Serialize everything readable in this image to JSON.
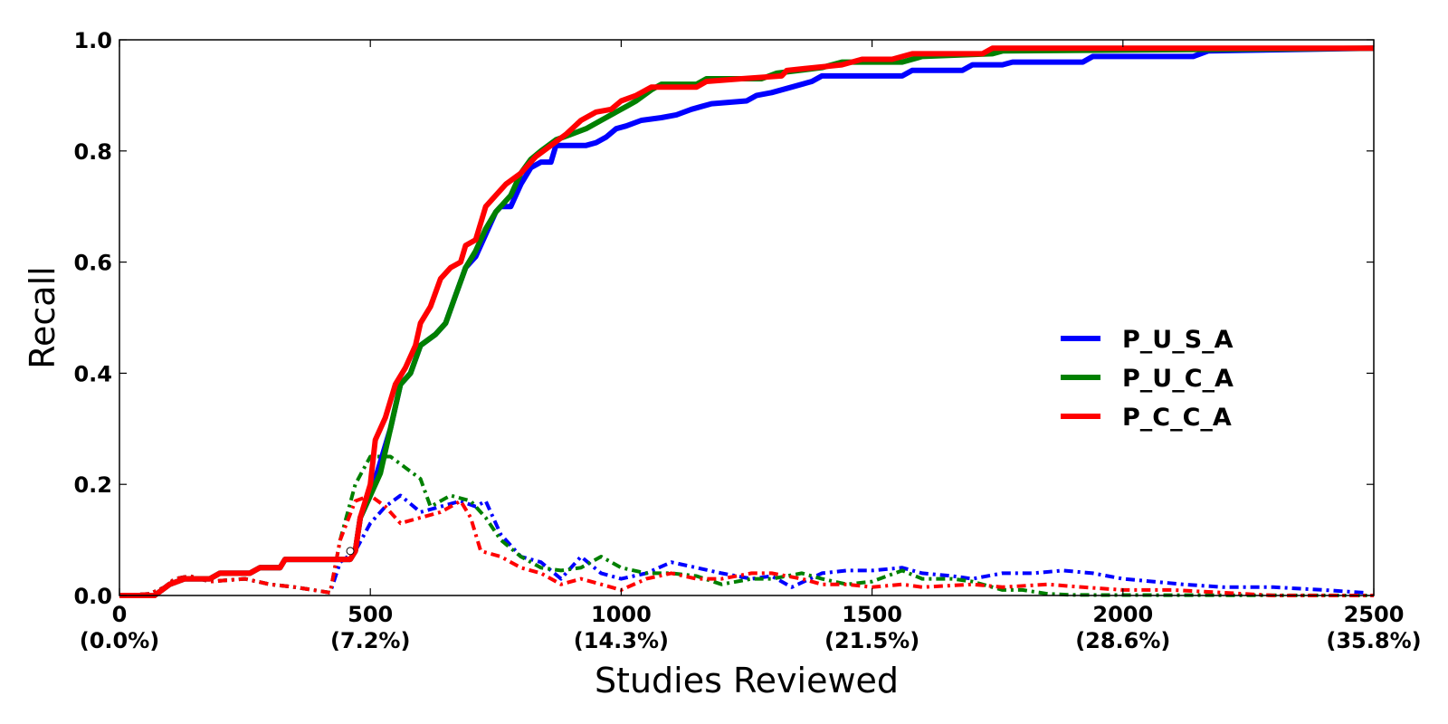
{
  "chart_data": {
    "type": "line",
    "title": "",
    "xlabel": "Studies Reviewed",
    "ylabel": "Recall",
    "xlim": [
      0,
      2500
    ],
    "ylim": [
      0,
      1.0
    ],
    "x_ticks": [
      {
        "value": 0,
        "label": "0",
        "sublabel": "(0.0%)"
      },
      {
        "value": 500,
        "label": "500",
        "sublabel": "(7.2%)"
      },
      {
        "value": 1000,
        "label": "1000",
        "sublabel": "(14.3%)"
      },
      {
        "value": 1500,
        "label": "1500",
        "sublabel": "(21.5%)"
      },
      {
        "value": 2000,
        "label": "2000",
        "sublabel": "(28.6%)"
      },
      {
        "value": 2500,
        "label": "2500",
        "sublabel": "(35.8%)"
      }
    ],
    "y_ticks": [
      {
        "value": 0.0,
        "label": "0.0"
      },
      {
        "value": 0.2,
        "label": "0.2"
      },
      {
        "value": 0.4,
        "label": "0.4"
      },
      {
        "value": 0.6,
        "label": "0.6"
      },
      {
        "value": 0.8,
        "label": "0.8"
      },
      {
        "value": 1.0,
        "label": "1.0"
      }
    ],
    "legend_position": "center-right",
    "series": [
      {
        "name": "P_U_S_A",
        "color": "#0000ff",
        "recall": [
          [
            0,
            0
          ],
          [
            70,
            0
          ],
          [
            100,
            0.02
          ],
          [
            130,
            0.03
          ],
          [
            180,
            0.03
          ],
          [
            200,
            0.04
          ],
          [
            260,
            0.04
          ],
          [
            280,
            0.05
          ],
          [
            320,
            0.05
          ],
          [
            330,
            0.065
          ],
          [
            460,
            0.065
          ],
          [
            470,
            0.08
          ],
          [
            480,
            0.14
          ],
          [
            500,
            0.18
          ],
          [
            520,
            0.24
          ],
          [
            540,
            0.3
          ],
          [
            560,
            0.38
          ],
          [
            580,
            0.4
          ],
          [
            600,
            0.45
          ],
          [
            630,
            0.47
          ],
          [
            650,
            0.49
          ],
          [
            670,
            0.54
          ],
          [
            690,
            0.59
          ],
          [
            710,
            0.61
          ],
          [
            730,
            0.65
          ],
          [
            750,
            0.69
          ],
          [
            760,
            0.7
          ],
          [
            780,
            0.7
          ],
          [
            800,
            0.74
          ],
          [
            820,
            0.77
          ],
          [
            840,
            0.78
          ],
          [
            860,
            0.78
          ],
          [
            870,
            0.81
          ],
          [
            930,
            0.81
          ],
          [
            950,
            0.815
          ],
          [
            970,
            0.825
          ],
          [
            990,
            0.84
          ],
          [
            1010,
            0.845
          ],
          [
            1040,
            0.855
          ],
          [
            1080,
            0.86
          ],
          [
            1110,
            0.865
          ],
          [
            1140,
            0.875
          ],
          [
            1160,
            0.88
          ],
          [
            1180,
            0.885
          ],
          [
            1250,
            0.89
          ],
          [
            1270,
            0.9
          ],
          [
            1300,
            0.905
          ],
          [
            1340,
            0.915
          ],
          [
            1380,
            0.925
          ],
          [
            1400,
            0.935
          ],
          [
            1560,
            0.935
          ],
          [
            1580,
            0.945
          ],
          [
            1680,
            0.945
          ],
          [
            1700,
            0.955
          ],
          [
            1760,
            0.955
          ],
          [
            1780,
            0.96
          ],
          [
            1920,
            0.96
          ],
          [
            1940,
            0.97
          ],
          [
            2140,
            0.97
          ],
          [
            2170,
            0.98
          ],
          [
            2500,
            0.985
          ]
        ],
        "validation": [
          [
            0,
            0
          ],
          [
            60,
            0.003
          ],
          [
            90,
            0.015
          ],
          [
            110,
            0.03
          ],
          [
            140,
            0.035
          ],
          [
            180,
            0.025
          ],
          [
            250,
            0.03
          ],
          [
            300,
            0.02
          ],
          [
            350,
            0.015
          ],
          [
            420,
            0.005
          ],
          [
            440,
            0.06
          ],
          [
            470,
            0.08
          ],
          [
            500,
            0.13
          ],
          [
            530,
            0.16
          ],
          [
            560,
            0.18
          ],
          [
            600,
            0.15
          ],
          [
            640,
            0.16
          ],
          [
            680,
            0.17
          ],
          [
            710,
            0.16
          ],
          [
            730,
            0.17
          ],
          [
            760,
            0.11
          ],
          [
            800,
            0.07
          ],
          [
            840,
            0.06
          ],
          [
            880,
            0.03
          ],
          [
            920,
            0.07
          ],
          [
            960,
            0.04
          ],
          [
            1000,
            0.03
          ],
          [
            1050,
            0.04
          ],
          [
            1100,
            0.06
          ],
          [
            1150,
            0.05
          ],
          [
            1200,
            0.04
          ],
          [
            1260,
            0.03
          ],
          [
            1300,
            0.035
          ],
          [
            1340,
            0.015
          ],
          [
            1400,
            0.04
          ],
          [
            1450,
            0.045
          ],
          [
            1500,
            0.045
          ],
          [
            1560,
            0.05
          ],
          [
            1600,
            0.04
          ],
          [
            1660,
            0.035
          ],
          [
            1700,
            0.03
          ],
          [
            1760,
            0.04
          ],
          [
            1820,
            0.04
          ],
          [
            1880,
            0.045
          ],
          [
            1940,
            0.04
          ],
          [
            2000,
            0.03
          ],
          [
            2060,
            0.025
          ],
          [
            2120,
            0.02
          ],
          [
            2200,
            0.015
          ],
          [
            2300,
            0.015
          ],
          [
            2400,
            0.01
          ],
          [
            2480,
            0.005
          ]
        ]
      },
      {
        "name": "P_U_C_A",
        "color": "#008000",
        "recall": [
          [
            0,
            0
          ],
          [
            70,
            0
          ],
          [
            100,
            0.02
          ],
          [
            130,
            0.03
          ],
          [
            180,
            0.03
          ],
          [
            200,
            0.04
          ],
          [
            260,
            0.04
          ],
          [
            280,
            0.05
          ],
          [
            320,
            0.05
          ],
          [
            330,
            0.065
          ],
          [
            460,
            0.065
          ],
          [
            470,
            0.08
          ],
          [
            480,
            0.14
          ],
          [
            500,
            0.18
          ],
          [
            520,
            0.22
          ],
          [
            540,
            0.3
          ],
          [
            560,
            0.38
          ],
          [
            580,
            0.4
          ],
          [
            600,
            0.45
          ],
          [
            630,
            0.47
          ],
          [
            650,
            0.49
          ],
          [
            670,
            0.54
          ],
          [
            690,
            0.59
          ],
          [
            710,
            0.62
          ],
          [
            730,
            0.66
          ],
          [
            750,
            0.69
          ],
          [
            780,
            0.72
          ],
          [
            800,
            0.76
          ],
          [
            820,
            0.785
          ],
          [
            840,
            0.8
          ],
          [
            870,
            0.82
          ],
          [
            900,
            0.83
          ],
          [
            930,
            0.84
          ],
          [
            960,
            0.855
          ],
          [
            990,
            0.87
          ],
          [
            1010,
            0.88
          ],
          [
            1030,
            0.89
          ],
          [
            1060,
            0.91
          ],
          [
            1080,
            0.92
          ],
          [
            1150,
            0.92
          ],
          [
            1170,
            0.93
          ],
          [
            1280,
            0.93
          ],
          [
            1310,
            0.94
          ],
          [
            1400,
            0.95
          ],
          [
            1440,
            0.96
          ],
          [
            1560,
            0.96
          ],
          [
            1600,
            0.97
          ],
          [
            1740,
            0.975
          ],
          [
            1760,
            0.98
          ],
          [
            2500,
            0.985
          ]
        ],
        "validation": [
          [
            0,
            0
          ],
          [
            60,
            0.003
          ],
          [
            90,
            0.015
          ],
          [
            110,
            0.03
          ],
          [
            140,
            0.035
          ],
          [
            180,
            0.025
          ],
          [
            250,
            0.03
          ],
          [
            300,
            0.02
          ],
          [
            350,
            0.015
          ],
          [
            420,
            0.005
          ],
          [
            440,
            0.1
          ],
          [
            470,
            0.2
          ],
          [
            500,
            0.25
          ],
          [
            540,
            0.25
          ],
          [
            570,
            0.23
          ],
          [
            600,
            0.21
          ],
          [
            620,
            0.16
          ],
          [
            660,
            0.18
          ],
          [
            700,
            0.17
          ],
          [
            730,
            0.14
          ],
          [
            760,
            0.1
          ],
          [
            800,
            0.07
          ],
          [
            840,
            0.05
          ],
          [
            880,
            0.045
          ],
          [
            920,
            0.05
          ],
          [
            960,
            0.07
          ],
          [
            1000,
            0.05
          ],
          [
            1050,
            0.04
          ],
          [
            1100,
            0.04
          ],
          [
            1150,
            0.035
          ],
          [
            1200,
            0.02
          ],
          [
            1260,
            0.03
          ],
          [
            1300,
            0.03
          ],
          [
            1360,
            0.04
          ],
          [
            1400,
            0.03
          ],
          [
            1450,
            0.02
          ],
          [
            1500,
            0.025
          ],
          [
            1560,
            0.045
          ],
          [
            1600,
            0.03
          ],
          [
            1660,
            0.03
          ],
          [
            1700,
            0.025
          ],
          [
            1760,
            0.01
          ],
          [
            1800,
            0.01
          ],
          [
            1850,
            0.003
          ],
          [
            1900,
            0.001
          ],
          [
            2500,
            0.0
          ]
        ]
      },
      {
        "name": "P_C_C_A",
        "color": "#ff0000",
        "recall": [
          [
            0,
            0
          ],
          [
            70,
            0
          ],
          [
            100,
            0.02
          ],
          [
            130,
            0.03
          ],
          [
            180,
            0.03
          ],
          [
            200,
            0.04
          ],
          [
            260,
            0.04
          ],
          [
            280,
            0.05
          ],
          [
            320,
            0.05
          ],
          [
            330,
            0.065
          ],
          [
            460,
            0.065
          ],
          [
            470,
            0.08
          ],
          [
            480,
            0.14
          ],
          [
            500,
            0.2
          ],
          [
            510,
            0.28
          ],
          [
            530,
            0.32
          ],
          [
            550,
            0.38
          ],
          [
            570,
            0.41
          ],
          [
            590,
            0.45
          ],
          [
            600,
            0.49
          ],
          [
            620,
            0.52
          ],
          [
            640,
            0.57
          ],
          [
            660,
            0.59
          ],
          [
            680,
            0.6
          ],
          [
            690,
            0.63
          ],
          [
            710,
            0.64
          ],
          [
            730,
            0.7
          ],
          [
            750,
            0.72
          ],
          [
            770,
            0.74
          ],
          [
            800,
            0.76
          ],
          [
            830,
            0.79
          ],
          [
            860,
            0.81
          ],
          [
            890,
            0.83
          ],
          [
            920,
            0.855
          ],
          [
            950,
            0.87
          ],
          [
            980,
            0.875
          ],
          [
            1000,
            0.89
          ],
          [
            1030,
            0.9
          ],
          [
            1060,
            0.915
          ],
          [
            1150,
            0.915
          ],
          [
            1170,
            0.925
          ],
          [
            1240,
            0.93
          ],
          [
            1320,
            0.935
          ],
          [
            1330,
            0.945
          ],
          [
            1440,
            0.955
          ],
          [
            1480,
            0.965
          ],
          [
            1540,
            0.965
          ],
          [
            1580,
            0.975
          ],
          [
            1720,
            0.975
          ],
          [
            1740,
            0.985
          ],
          [
            2500,
            0.985
          ]
        ],
        "validation": [
          [
            0,
            0
          ],
          [
            60,
            0.003
          ],
          [
            90,
            0.015
          ],
          [
            110,
            0.03
          ],
          [
            140,
            0.035
          ],
          [
            180,
            0.025
          ],
          [
            250,
            0.03
          ],
          [
            300,
            0.02
          ],
          [
            350,
            0.015
          ],
          [
            420,
            0.005
          ],
          [
            440,
            0.1
          ],
          [
            470,
            0.17
          ],
          [
            500,
            0.18
          ],
          [
            530,
            0.16
          ],
          [
            560,
            0.13
          ],
          [
            600,
            0.14
          ],
          [
            640,
            0.15
          ],
          [
            680,
            0.17
          ],
          [
            700,
            0.14
          ],
          [
            720,
            0.08
          ],
          [
            760,
            0.07
          ],
          [
            800,
            0.05
          ],
          [
            840,
            0.04
          ],
          [
            880,
            0.02
          ],
          [
            920,
            0.03
          ],
          [
            960,
            0.02
          ],
          [
            1000,
            0.01
          ],
          [
            1050,
            0.03
          ],
          [
            1100,
            0.04
          ],
          [
            1150,
            0.03
          ],
          [
            1200,
            0.03
          ],
          [
            1260,
            0.04
          ],
          [
            1300,
            0.04
          ],
          [
            1360,
            0.03
          ],
          [
            1400,
            0.02
          ],
          [
            1450,
            0.02
          ],
          [
            1500,
            0.015
          ],
          [
            1560,
            0.02
          ],
          [
            1600,
            0.015
          ],
          [
            1700,
            0.02
          ],
          [
            1760,
            0.015
          ],
          [
            1850,
            0.02
          ],
          [
            1920,
            0.015
          ],
          [
            2000,
            0.01
          ],
          [
            2100,
            0.01
          ],
          [
            2200,
            0.005
          ],
          [
            2300,
            0.0
          ],
          [
            2500,
            0.0
          ]
        ]
      }
    ]
  }
}
